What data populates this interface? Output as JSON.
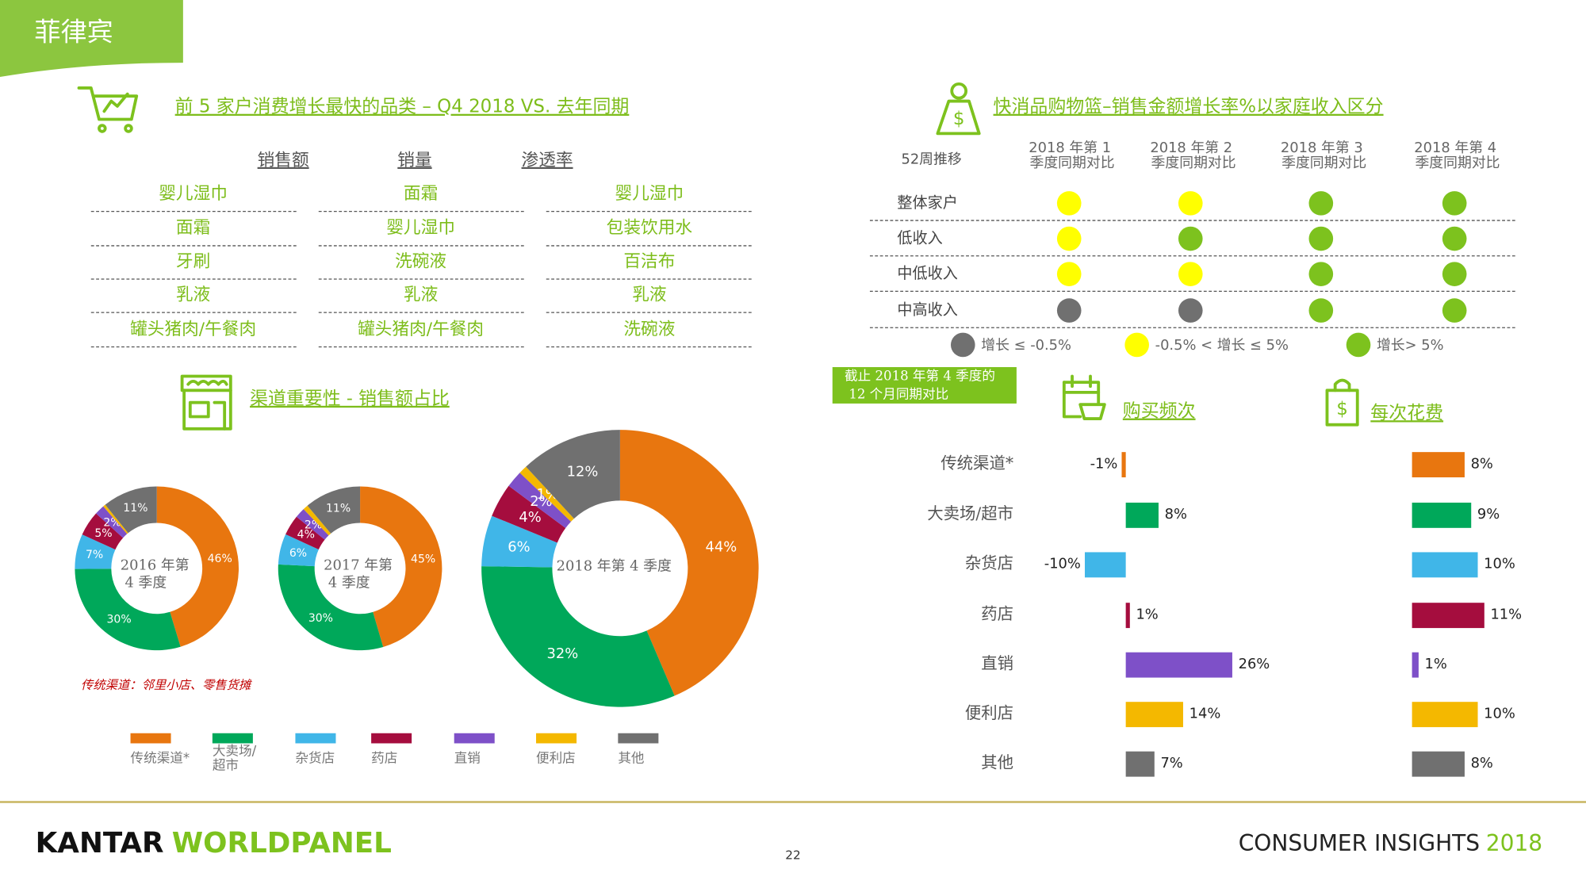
{
  "header": {
    "country": "菲律宾"
  },
  "categories_section": {
    "title": "前 5 家户消费增长最快的品类 – Q4 2018 VS. 去年同期",
    "columns": [
      "销售额",
      "销量",
      "渗透率"
    ],
    "rows": [
      [
        "婴儿湿巾",
        "面霜",
        "婴儿湿巾"
      ],
      [
        "面霜",
        "婴儿湿巾",
        "包装饮用水"
      ],
      [
        "牙刷",
        "洗碗液",
        "百洁布"
      ],
      [
        "乳液",
        "乳液",
        "乳液"
      ],
      [
        "罐头猪肉/午餐肉",
        "罐头猪肉/午餐肉",
        "洗碗液"
      ]
    ]
  },
  "income_section": {
    "title": "快消品购物篮–销售金额增长率%以家庭收入区分",
    "corner": "52周推移",
    "columns": [
      "2018 年第 1 季度同期对比",
      "2018 年第 2 季度同期对比",
      "2018 年第 3 季度同期对比",
      "2018 年第 4 季度同期对比"
    ],
    "status_colors": {
      "gray": "#707070",
      "yellow": "#ffff00",
      "green": "#7dc21e"
    },
    "rows": [
      {
        "label": "整体家户",
        "status": [
          "yellow",
          "yellow",
          "green",
          "green"
        ]
      },
      {
        "label": "低收入",
        "status": [
          "yellow",
          "green",
          "green",
          "green"
        ]
      },
      {
        "label": "中低收入",
        "status": [
          "yellow",
          "yellow",
          "green",
          "green"
        ]
      },
      {
        "label": "中高收入",
        "status": [
          "gray",
          "gray",
          "green",
          "green"
        ]
      }
    ],
    "legend": [
      {
        "status": "gray",
        "label": "增长 ≤ -0.5%"
      },
      {
        "status": "yellow",
        "label": "-0.5% < 增长 ≤ 5%"
      },
      {
        "status": "green",
        "label": "增长> 5%"
      }
    ]
  },
  "chart_data": [
    {
      "type": "donut",
      "title": "渠道重要性 - 销售额占比",
      "note": "传统渠道：邻里小店、零售货摊",
      "categories": [
        "传统渠道*",
        "大卖场/超市",
        "杂货店",
        "药店",
        "直销",
        "便利店",
        "其他"
      ],
      "colors": [
        "#e8760f",
        "#00a85a",
        "#40b6e8",
        "#a50d3e",
        "#7e50c8",
        "#f4b800",
        "#707070"
      ],
      "series": [
        {
          "name": "2016 年第 4 季度",
          "values": [
            46,
            30,
            7,
            5,
            2,
            0.5,
            11
          ],
          "value_labels": [
            "46%",
            "30%",
            "7%",
            "5%",
            "2%",
            null,
            "11%"
          ]
        },
        {
          "name": "2017 年第 4 季度",
          "values": [
            45,
            30,
            6,
            4,
            2,
            1,
            11
          ],
          "value_labels": [
            "45%",
            "30%",
            "6%",
            "4%",
            "2%",
            null,
            "11%"
          ]
        },
        {
          "name": "2018 年第 4 季度",
          "values": [
            44,
            32,
            6,
            4,
            2,
            1,
            12
          ],
          "value_labels": [
            "44%",
            "32%",
            "6%",
            "4%",
            "2%",
            "1%",
            "12%"
          ]
        }
      ]
    },
    {
      "type": "bar",
      "orientation": "horizontal",
      "subtitle": "截止 2018 年第 4 季度的 12 个月同期对比",
      "categories": [
        "传统渠道*",
        "大卖场/超市",
        "杂货店",
        "药店",
        "直销",
        "便利店",
        "其他"
      ],
      "colors": [
        "#e8760f",
        "#00a85a",
        "#40b6e8",
        "#a50d3e",
        "#7e50c8",
        "#f4b800",
        "#707070"
      ],
      "series": [
        {
          "name": "购买频次",
          "values": [
            -1,
            8,
            -10,
            1,
            26,
            14,
            7
          ],
          "value_labels": [
            "-1%",
            "8%",
            "-10%",
            "1%",
            "26%",
            "14%",
            "7%"
          ]
        },
        {
          "name": "每次花费",
          "values": [
            8,
            9,
            10,
            11,
            1,
            10,
            8
          ],
          "value_labels": [
            "8%",
            "9%",
            "10%",
            "11%",
            "1%",
            "10%",
            "8%"
          ]
        }
      ]
    }
  ],
  "footer": {
    "brand_first": "KANTAR",
    "brand_second": "WORLDPANEL",
    "page": "22",
    "report": "CONSUMER INSIGHTS",
    "year": "2018"
  }
}
